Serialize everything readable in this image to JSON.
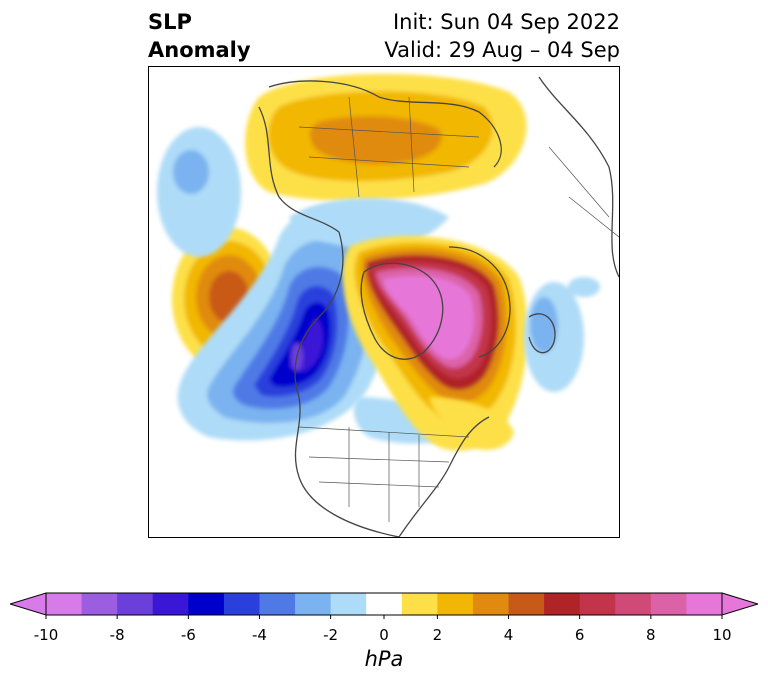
{
  "title": {
    "variable_line1": "SLP",
    "variable_line2": "Anomaly",
    "init": "Init: Sun 04 Sep 2022",
    "valid": "Valid: 29 Aug – 04 Sep"
  },
  "colorbar": {
    "units": "hPa",
    "ticks": [
      "-10",
      "-8",
      "-6",
      "-4",
      "-2",
      "0",
      "2",
      "4",
      "6",
      "8",
      "10"
    ],
    "levels": [
      -10,
      -9,
      -8,
      -7,
      -6,
      -5,
      -4,
      -3,
      -2,
      -1,
      1,
      2,
      3,
      4,
      5,
      6,
      7,
      8,
      9,
      10
    ],
    "colors": [
      "#d77be8",
      "#9b5ee0",
      "#6b3fd9",
      "#3a17d6",
      "#0000cc",
      "#2a3fdc",
      "#4f7ae6",
      "#7ab3f0",
      "#aedbf7",
      "#ffffff",
      "#fde047",
      "#f2b705",
      "#e08b10",
      "#c85a19",
      "#b02428",
      "#c2344a",
      "#d04a78",
      "#dc62a8",
      "#e677d8"
    ],
    "extend_low_color": "#d77be8",
    "extend_high_color": "#e677d8"
  },
  "anomalies": [
    {
      "name": "aleutian-positive",
      "value": 5
    },
    {
      "name": "north-pacific-negative",
      "value": -7
    },
    {
      "name": "arctic-positive",
      "value": 10
    },
    {
      "name": "eurasia-positive",
      "value": 4
    },
    {
      "name": "north-atlantic-negative",
      "value": -3
    },
    {
      "name": "greenland-sea-positive",
      "value": 3
    }
  ]
}
